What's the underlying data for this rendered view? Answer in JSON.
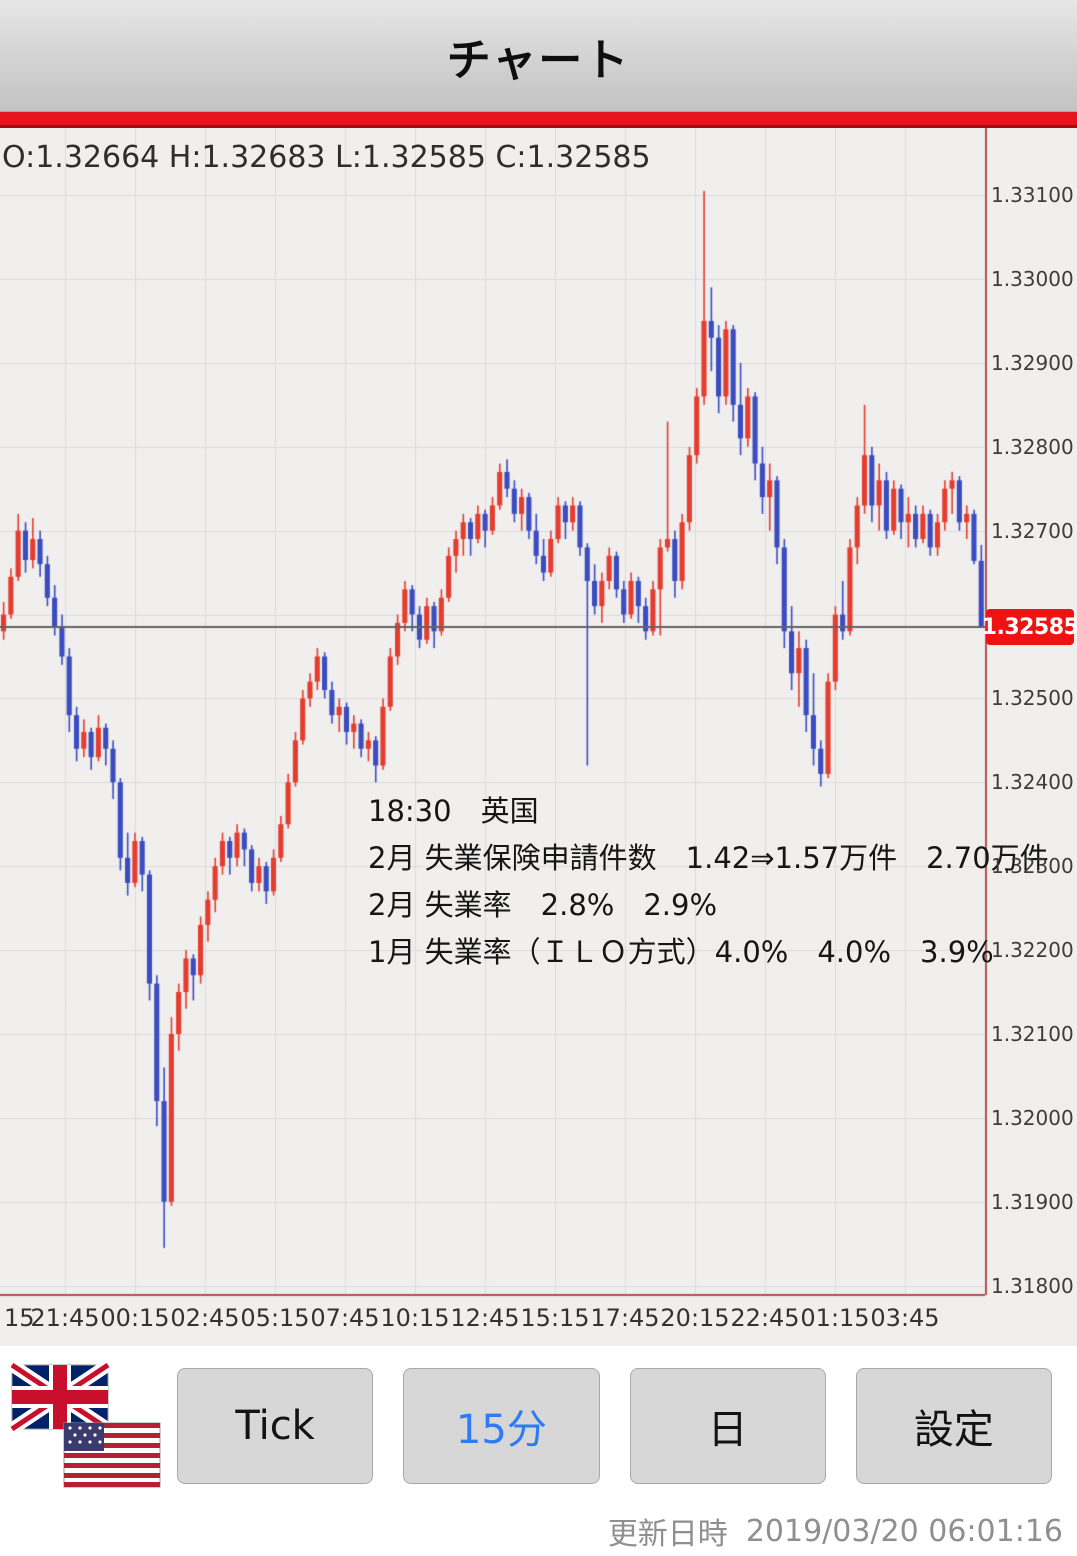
{
  "header": {
    "title": "チャート"
  },
  "ohlc_readout": {
    "text": "O:1.32664 H:1.32683 L:1.32585 C:1.32585",
    "open": "1.32664",
    "high": "1.32683",
    "low": "1.32585",
    "close": "1.32585"
  },
  "annotation": {
    "lines": [
      "18:30　英国",
      "2月 失業保険申請件数　1.42⇒1.57万件　2.70万件",
      "2月 失業率　2.8%　2.9%",
      "1月 失業率（ＩＬＯ方式）4.0%　4.0%　3.9%"
    ]
  },
  "toolbar": {
    "buttons": [
      {
        "id": "tick",
        "label": "Tick",
        "active": false
      },
      {
        "id": "interval-15min",
        "label": "15分",
        "active": true
      },
      {
        "id": "daily",
        "label": "日",
        "active": false
      },
      {
        "id": "settings",
        "label": "設定",
        "active": false
      }
    ],
    "pair_icons": [
      "uk-flag",
      "us-flag"
    ]
  },
  "footer": {
    "label": "更新日時",
    "value": "2019/03/20 06:01:16"
  },
  "chart_data": {
    "type": "candlestick",
    "timeframe_label": "15分",
    "ylim": [
      1.3179,
      1.3318
    ],
    "grid": true,
    "y_tick_interval": 0.001,
    "y_tick_labels": [
      "1.33100",
      "1.33000",
      "1.32900",
      "1.32800",
      "1.32700",
      "1.32500",
      "1.32400",
      "1.32300",
      "1.32200",
      "1.32100",
      "1.32000",
      "1.31900",
      "1.31800"
    ],
    "x_tick_labels": [
      "15",
      "21:45",
      "00:15",
      "02:45",
      "05:15",
      "07:45",
      "10:15",
      "12:45",
      "15:15",
      "17:45",
      "20:15",
      "22:45",
      "01:15",
      "03:45"
    ],
    "current_price": 1.32585,
    "current_price_label": "1.32585",
    "colors": {
      "up": "#e43d30",
      "down": "#3a4cc0",
      "bg": "#f0efee",
      "grid": "#dcdcdc",
      "price_line": "#636363",
      "badge_bg": "#ee1212",
      "badge_text": "#ffffff",
      "axis_line": "#b0514e"
    },
    "candles": [
      [
        1.3258,
        1.32615,
        1.3257,
        1.326
      ],
      [
        1.326,
        1.32655,
        1.32595,
        1.32645
      ],
      [
        1.32645,
        1.3272,
        1.3264,
        1.327
      ],
      [
        1.327,
        1.3271,
        1.3265,
        1.32665
      ],
      [
        1.32665,
        1.32715,
        1.32655,
        1.3269
      ],
      [
        1.3269,
        1.327,
        1.32645,
        1.3266
      ],
      [
        1.3266,
        1.3267,
        1.3261,
        1.3262
      ],
      [
        1.3262,
        1.32635,
        1.32575,
        1.32585
      ],
      [
        1.32585,
        1.326,
        1.3254,
        1.3255
      ],
      [
        1.3255,
        1.3256,
        1.3246,
        1.3248
      ],
      [
        1.3248,
        1.3249,
        1.32425,
        1.3244
      ],
      [
        1.3244,
        1.32475,
        1.3243,
        1.3246
      ],
      [
        1.3246,
        1.32465,
        1.32415,
        1.3243
      ],
      [
        1.3243,
        1.3248,
        1.32425,
        1.32465
      ],
      [
        1.32465,
        1.3247,
        1.3242,
        1.3244
      ],
      [
        1.3244,
        1.3245,
        1.3238,
        1.324
      ],
      [
        1.324,
        1.32405,
        1.32295,
        1.3231
      ],
      [
        1.3231,
        1.3234,
        1.32265,
        1.3228
      ],
      [
        1.3228,
        1.3234,
        1.32275,
        1.3233
      ],
      [
        1.3233,
        1.32335,
        1.3227,
        1.3229
      ],
      [
        1.3229,
        1.32295,
        1.3214,
        1.3216
      ],
      [
        1.3216,
        1.3217,
        1.3199,
        1.3202
      ],
      [
        1.3202,
        1.3206,
        1.31845,
        1.319
      ],
      [
        1.319,
        1.3212,
        1.31895,
        1.321
      ],
      [
        1.321,
        1.3216,
        1.3208,
        1.3215
      ],
      [
        1.3215,
        1.322,
        1.3213,
        1.3219
      ],
      [
        1.3219,
        1.32195,
        1.3214,
        1.3217
      ],
      [
        1.3217,
        1.3224,
        1.3216,
        1.3223
      ],
      [
        1.3223,
        1.3227,
        1.3221,
        1.3226
      ],
      [
        1.3226,
        1.3231,
        1.32245,
        1.323
      ],
      [
        1.323,
        1.3234,
        1.3229,
        1.3233
      ],
      [
        1.3233,
        1.32335,
        1.3229,
        1.3231
      ],
      [
        1.3231,
        1.3235,
        1.323,
        1.3234
      ],
      [
        1.3234,
        1.32345,
        1.323,
        1.3232
      ],
      [
        1.3232,
        1.32325,
        1.3227,
        1.3228
      ],
      [
        1.3228,
        1.3231,
        1.3227,
        1.323
      ],
      [
        1.323,
        1.32305,
        1.32255,
        1.3227
      ],
      [
        1.3227,
        1.3232,
        1.32265,
        1.3231
      ],
      [
        1.3231,
        1.3236,
        1.32305,
        1.3235
      ],
      [
        1.3235,
        1.3241,
        1.32345,
        1.324
      ],
      [
        1.324,
        1.3246,
        1.32395,
        1.3245
      ],
      [
        1.3245,
        1.3251,
        1.32445,
        1.325
      ],
      [
        1.325,
        1.3253,
        1.3249,
        1.3252
      ],
      [
        1.3252,
        1.3256,
        1.3251,
        1.3255
      ],
      [
        1.3255,
        1.32555,
        1.325,
        1.3251
      ],
      [
        1.3251,
        1.3252,
        1.3247,
        1.3248
      ],
      [
        1.3248,
        1.325,
        1.3246,
        1.3249
      ],
      [
        1.3249,
        1.32495,
        1.32445,
        1.3246
      ],
      [
        1.3246,
        1.3248,
        1.3244,
        1.3247
      ],
      [
        1.3247,
        1.32475,
        1.3243,
        1.3244
      ],
      [
        1.3244,
        1.3246,
        1.32425,
        1.3245
      ],
      [
        1.3245,
        1.32455,
        1.324,
        1.3242
      ],
      [
        1.3242,
        1.325,
        1.32415,
        1.3249
      ],
      [
        1.3249,
        1.3256,
        1.32485,
        1.3255
      ],
      [
        1.3255,
        1.326,
        1.3254,
        1.3259
      ],
      [
        1.3259,
        1.3264,
        1.3258,
        1.3263
      ],
      [
        1.3263,
        1.32635,
        1.3258,
        1.326
      ],
      [
        1.326,
        1.3261,
        1.3256,
        1.3257
      ],
      [
        1.3257,
        1.3262,
        1.32565,
        1.3261
      ],
      [
        1.3261,
        1.32615,
        1.3256,
        1.3258
      ],
      [
        1.3258,
        1.3263,
        1.32575,
        1.3262
      ],
      [
        1.3262,
        1.3268,
        1.32615,
        1.3267
      ],
      [
        1.3267,
        1.327,
        1.3265,
        1.3269
      ],
      [
        1.3269,
        1.3272,
        1.3267,
        1.3271
      ],
      [
        1.3271,
        1.32715,
        1.3267,
        1.3269
      ],
      [
        1.3269,
        1.3273,
        1.32685,
        1.3272
      ],
      [
        1.3272,
        1.32725,
        1.3268,
        1.327
      ],
      [
        1.327,
        1.3274,
        1.32695,
        1.3273
      ],
      [
        1.3273,
        1.3278,
        1.32725,
        1.3277
      ],
      [
        1.3277,
        1.32785,
        1.3274,
        1.3275
      ],
      [
        1.3275,
        1.3276,
        1.3271,
        1.3272
      ],
      [
        1.3272,
        1.3275,
        1.327,
        1.3274
      ],
      [
        1.3274,
        1.32745,
        1.3269,
        1.327
      ],
      [
        1.327,
        1.3272,
        1.3266,
        1.3267
      ],
      [
        1.3267,
        1.3269,
        1.3264,
        1.3265
      ],
      [
        1.3265,
        1.327,
        1.32645,
        1.3269
      ],
      [
        1.3269,
        1.3274,
        1.32685,
        1.3273
      ],
      [
        1.3273,
        1.32735,
        1.3269,
        1.3271
      ],
      [
        1.3271,
        1.3274,
        1.327,
        1.3273
      ],
      [
        1.3273,
        1.32735,
        1.3267,
        1.3268
      ],
      [
        1.3268,
        1.32685,
        1.3242,
        1.3264
      ],
      [
        1.3264,
        1.3266,
        1.326,
        1.3261
      ],
      [
        1.3261,
        1.3265,
        1.3259,
        1.3264
      ],
      [
        1.3264,
        1.3268,
        1.3263,
        1.3267
      ],
      [
        1.3267,
        1.32675,
        1.3262,
        1.3263
      ],
      [
        1.3263,
        1.3264,
        1.3259,
        1.326
      ],
      [
        1.326,
        1.3265,
        1.32595,
        1.3264
      ],
      [
        1.3264,
        1.32645,
        1.3259,
        1.3261
      ],
      [
        1.3261,
        1.3262,
        1.3257,
        1.3258
      ],
      [
        1.3258,
        1.3264,
        1.32575,
        1.3263
      ],
      [
        1.3263,
        1.3269,
        1.32575,
        1.3268
      ],
      [
        1.3268,
        1.3283,
        1.32675,
        1.3269
      ],
      [
        1.3269,
        1.327,
        1.3262,
        1.3264
      ],
      [
        1.3264,
        1.3272,
        1.3263,
        1.3271
      ],
      [
        1.3271,
        1.328,
        1.327,
        1.3279
      ],
      [
        1.3279,
        1.3287,
        1.3278,
        1.3286
      ],
      [
        1.3286,
        1.33105,
        1.3285,
        1.3295
      ],
      [
        1.3295,
        1.3299,
        1.3289,
        1.3293
      ],
      [
        1.3293,
        1.32945,
        1.3284,
        1.3286
      ],
      [
        1.3286,
        1.3295,
        1.3285,
        1.3294
      ],
      [
        1.3294,
        1.32945,
        1.3283,
        1.3285
      ],
      [
        1.3285,
        1.329,
        1.3279,
        1.3281
      ],
      [
        1.3281,
        1.3287,
        1.328,
        1.3286
      ],
      [
        1.3286,
        1.32865,
        1.3276,
        1.3278
      ],
      [
        1.3278,
        1.328,
        1.3272,
        1.3274
      ],
      [
        1.3274,
        1.3278,
        1.327,
        1.3276
      ],
      [
        1.3276,
        1.32765,
        1.3266,
        1.3268
      ],
      [
        1.3268,
        1.3269,
        1.3256,
        1.3258
      ],
      [
        1.3258,
        1.3261,
        1.3251,
        1.3253
      ],
      [
        1.3253,
        1.3258,
        1.3249,
        1.3256
      ],
      [
        1.3256,
        1.3257,
        1.3246,
        1.3248
      ],
      [
        1.3248,
        1.3253,
        1.3242,
        1.3244
      ],
      [
        1.3244,
        1.3245,
        1.32395,
        1.3241
      ],
      [
        1.3241,
        1.3253,
        1.32405,
        1.3252
      ],
      [
        1.3252,
        1.3261,
        1.3251,
        1.326
      ],
      [
        1.326,
        1.3264,
        1.3257,
        1.3258
      ],
      [
        1.3258,
        1.3269,
        1.32575,
        1.3268
      ],
      [
        1.3268,
        1.3274,
        1.3266,
        1.3273
      ],
      [
        1.3273,
        1.3285,
        1.3272,
        1.3279
      ],
      [
        1.3279,
        1.328,
        1.3271,
        1.3273
      ],
      [
        1.3273,
        1.3278,
        1.327,
        1.3276
      ],
      [
        1.3276,
        1.3277,
        1.3269,
        1.327
      ],
      [
        1.327,
        1.3276,
        1.32695,
        1.3275
      ],
      [
        1.3275,
        1.32755,
        1.3269,
        1.3271
      ],
      [
        1.3271,
        1.3274,
        1.3268,
        1.3272
      ],
      [
        1.3272,
        1.3273,
        1.3268,
        1.3269
      ],
      [
        1.3269,
        1.3273,
        1.32685,
        1.3272
      ],
      [
        1.3272,
        1.32725,
        1.3267,
        1.3268
      ],
      [
        1.3268,
        1.3272,
        1.3267,
        1.3271
      ],
      [
        1.3271,
        1.3276,
        1.327,
        1.3275
      ],
      [
        1.3275,
        1.3277,
        1.3272,
        1.3276
      ],
      [
        1.3276,
        1.32765,
        1.327,
        1.3271
      ],
      [
        1.3271,
        1.3273,
        1.3269,
        1.3272
      ],
      [
        1.3272,
        1.32725,
        1.3266,
        1.32664
      ],
      [
        1.32664,
        1.32683,
        1.32585,
        1.32585
      ]
    ]
  }
}
